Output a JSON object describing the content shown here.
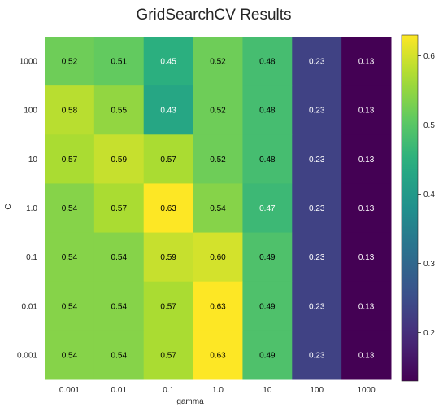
{
  "chart_data": {
    "type": "heatmap",
    "title": "GridSearchCV Results",
    "xlabel": "gamma",
    "ylabel": "C",
    "x_categories": [
      "0.001",
      "0.01",
      "0.1",
      "1.0",
      "10",
      "100",
      "1000"
    ],
    "y_categories": [
      "1000",
      "100",
      "10",
      "1.0",
      "0.1",
      "0.01",
      "0.001"
    ],
    "values": [
      [
        0.52,
        0.51,
        0.45,
        0.52,
        0.48,
        0.23,
        0.13
      ],
      [
        0.58,
        0.55,
        0.43,
        0.52,
        0.48,
        0.23,
        0.13
      ],
      [
        0.57,
        0.59,
        0.57,
        0.52,
        0.48,
        0.23,
        0.13
      ],
      [
        0.54,
        0.57,
        0.63,
        0.54,
        0.47,
        0.23,
        0.13
      ],
      [
        0.54,
        0.54,
        0.59,
        0.6,
        0.49,
        0.23,
        0.13
      ],
      [
        0.54,
        0.54,
        0.57,
        0.63,
        0.49,
        0.23,
        0.13
      ],
      [
        0.54,
        0.54,
        0.57,
        0.63,
        0.49,
        0.23,
        0.13
      ]
    ],
    "colormap": "viridis",
    "color_range": [
      0.13,
      0.63
    ],
    "colorbar_ticks": [
      "0.2",
      "0.3",
      "0.4",
      "0.5",
      "0.6"
    ],
    "grid": false
  }
}
